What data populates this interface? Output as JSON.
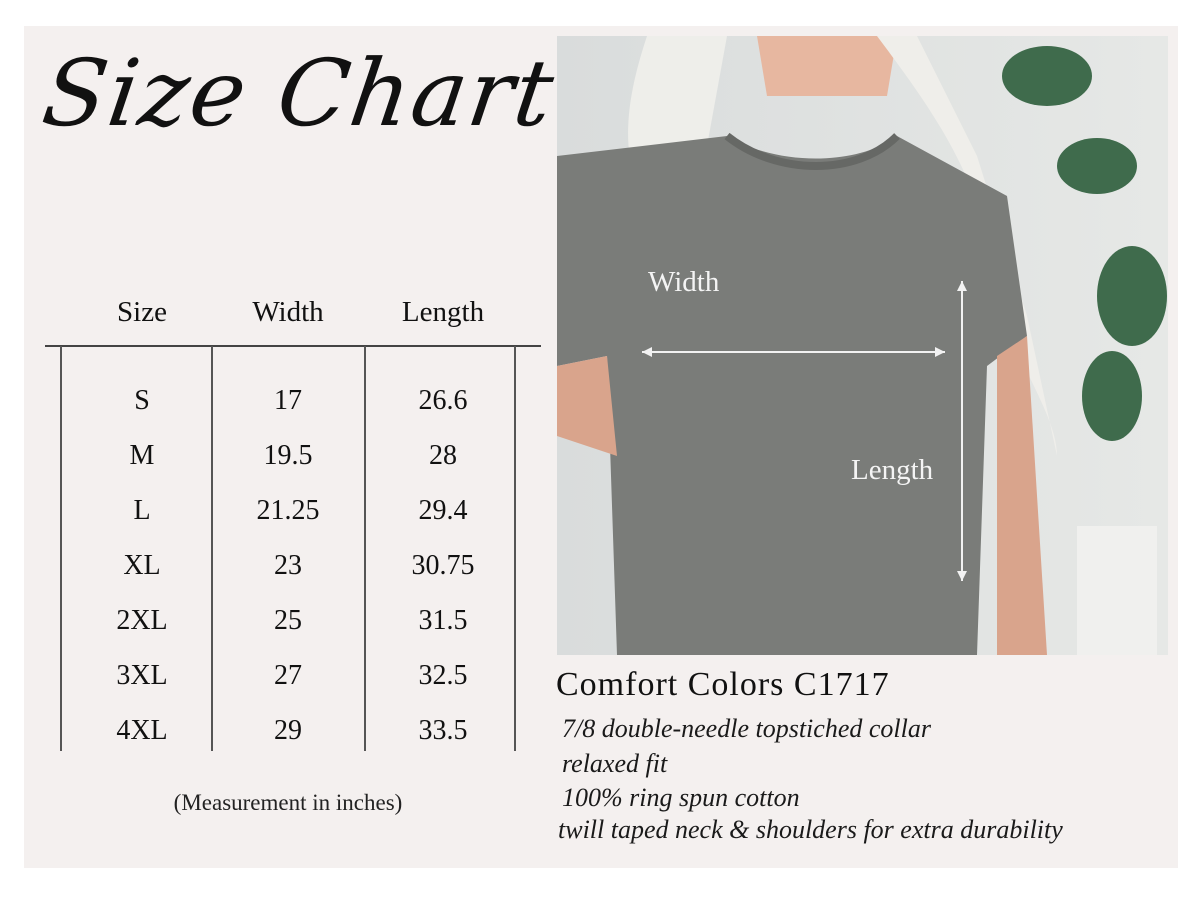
{
  "title": "Size Chart",
  "table": {
    "headers": [
      "Size",
      "Width",
      "Length"
    ],
    "rows": [
      [
        "S",
        "17",
        "26.6"
      ],
      [
        "M",
        "19.5",
        "28"
      ],
      [
        "L",
        "21.25",
        "29.4"
      ],
      [
        "XL",
        "23",
        "30.75"
      ],
      [
        "2XL",
        "25",
        "31.5"
      ],
      [
        "3XL",
        "27",
        "32.5"
      ],
      [
        "4XL",
        "29",
        "33.5"
      ]
    ],
    "note": "(Measurement in inches)"
  },
  "photo": {
    "width_label": "Width",
    "length_label": "Length",
    "shirt_color": "#7a7c79"
  },
  "product": {
    "name": "Comfort Colors C1717",
    "features": [
      "7/8 double-needle topstiched collar",
      "relaxed fit",
      "100% ring spun cotton",
      "twill taped neck & shoulders for extra durability"
    ]
  }
}
